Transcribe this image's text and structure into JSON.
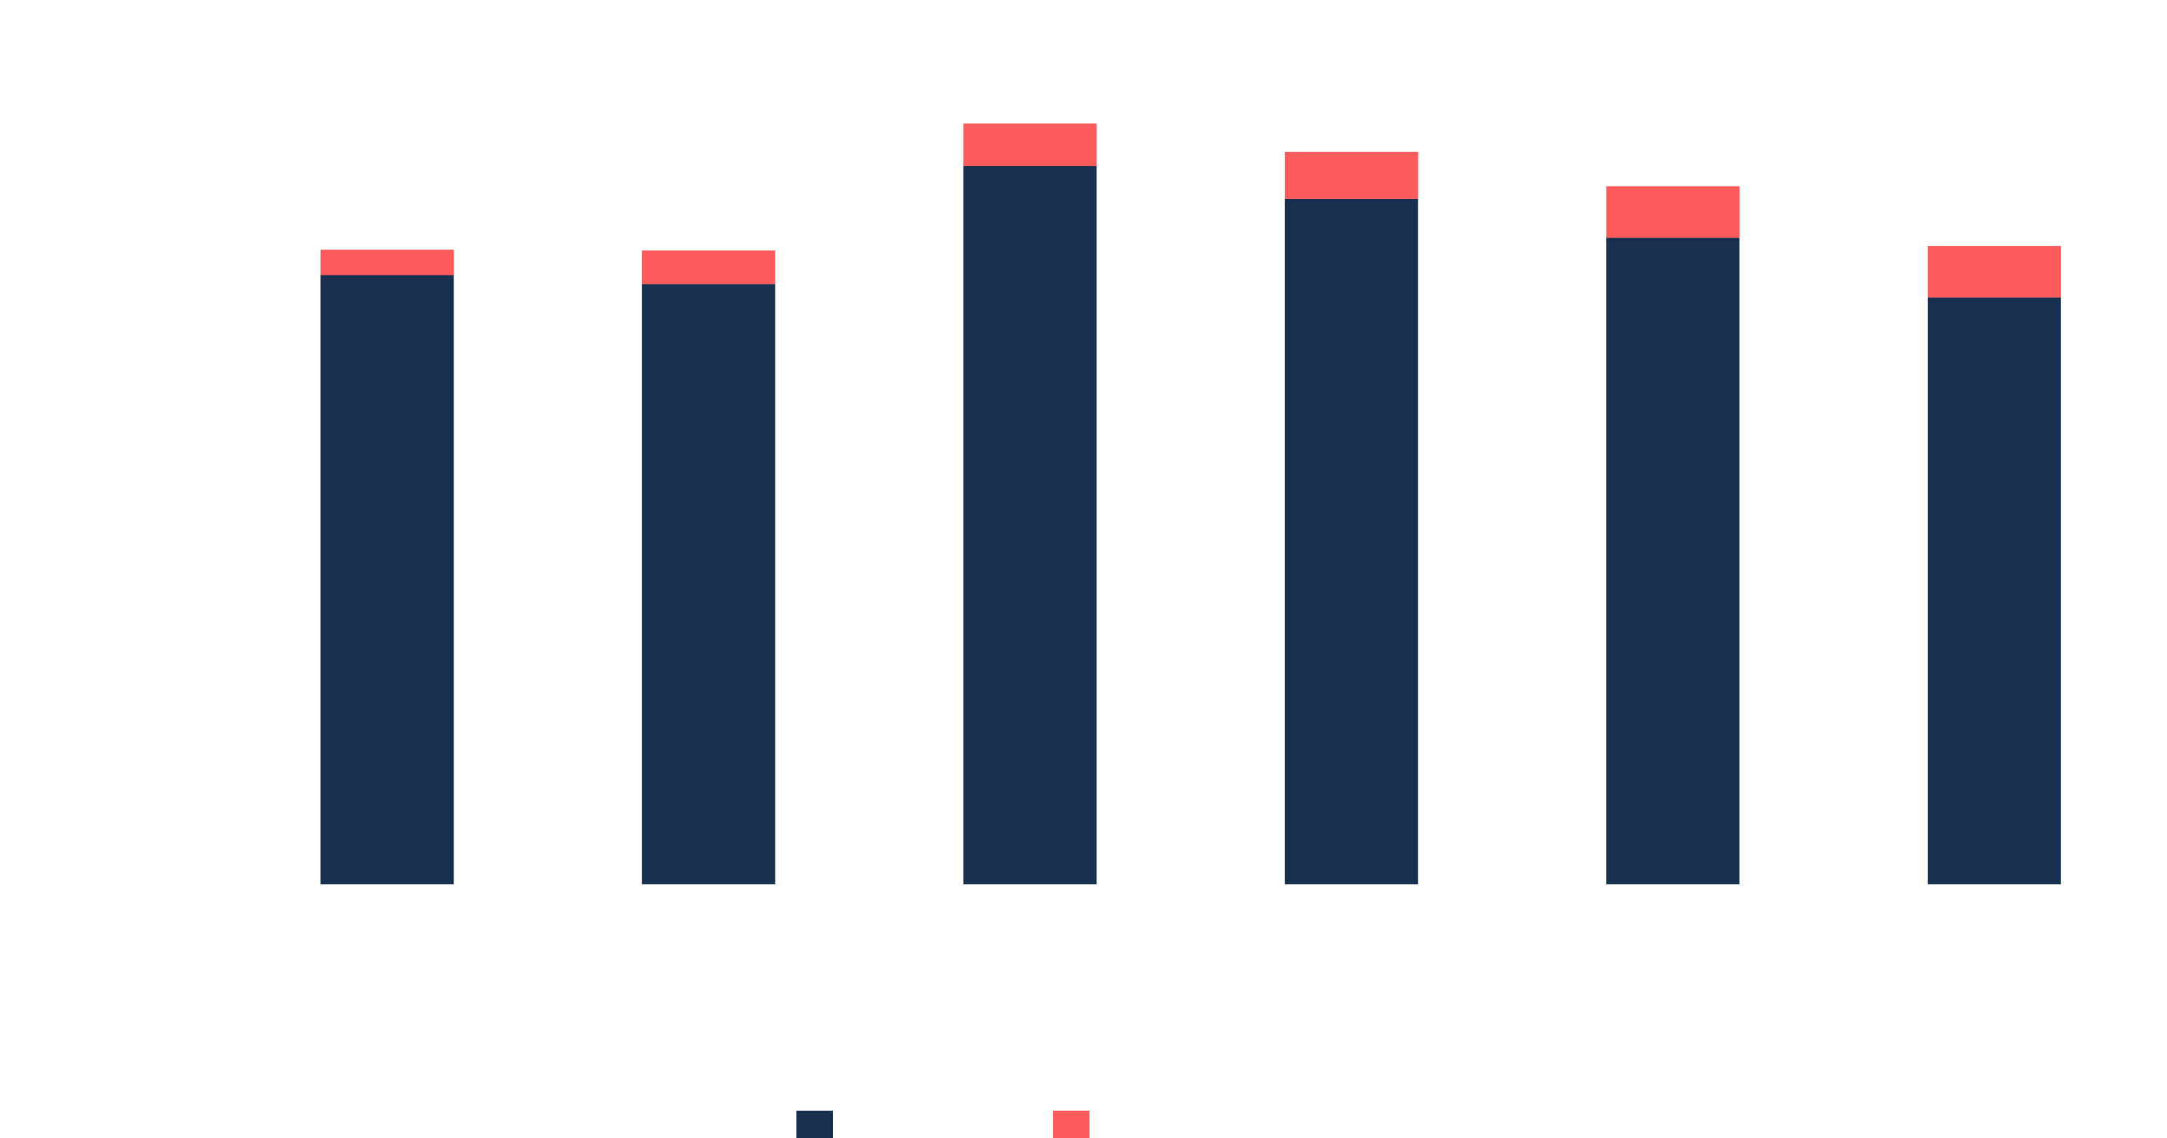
{
  "chart_data": {
    "type": "bar",
    "stacked": true,
    "categories": [
      "",
      "",
      "",
      "",
      "",
      ""
    ],
    "series": [
      {
        "color": "#17304f",
        "values": [
          816,
          804,
          962,
          918,
          866,
          786
        ]
      },
      {
        "color": "#fd5a5b",
        "values": [
          34,
          45,
          57,
          63,
          69,
          69
        ]
      }
    ],
    "title": "",
    "xlabel": "",
    "ylabel": "",
    "ylim": [
      0,
      1100
    ],
    "grid": false,
    "legend": {
      "position": "bottom-center",
      "entries": [
        {
          "color": "#17304f"
        },
        {
          "color": "#fd5a5b"
        }
      ]
    }
  }
}
